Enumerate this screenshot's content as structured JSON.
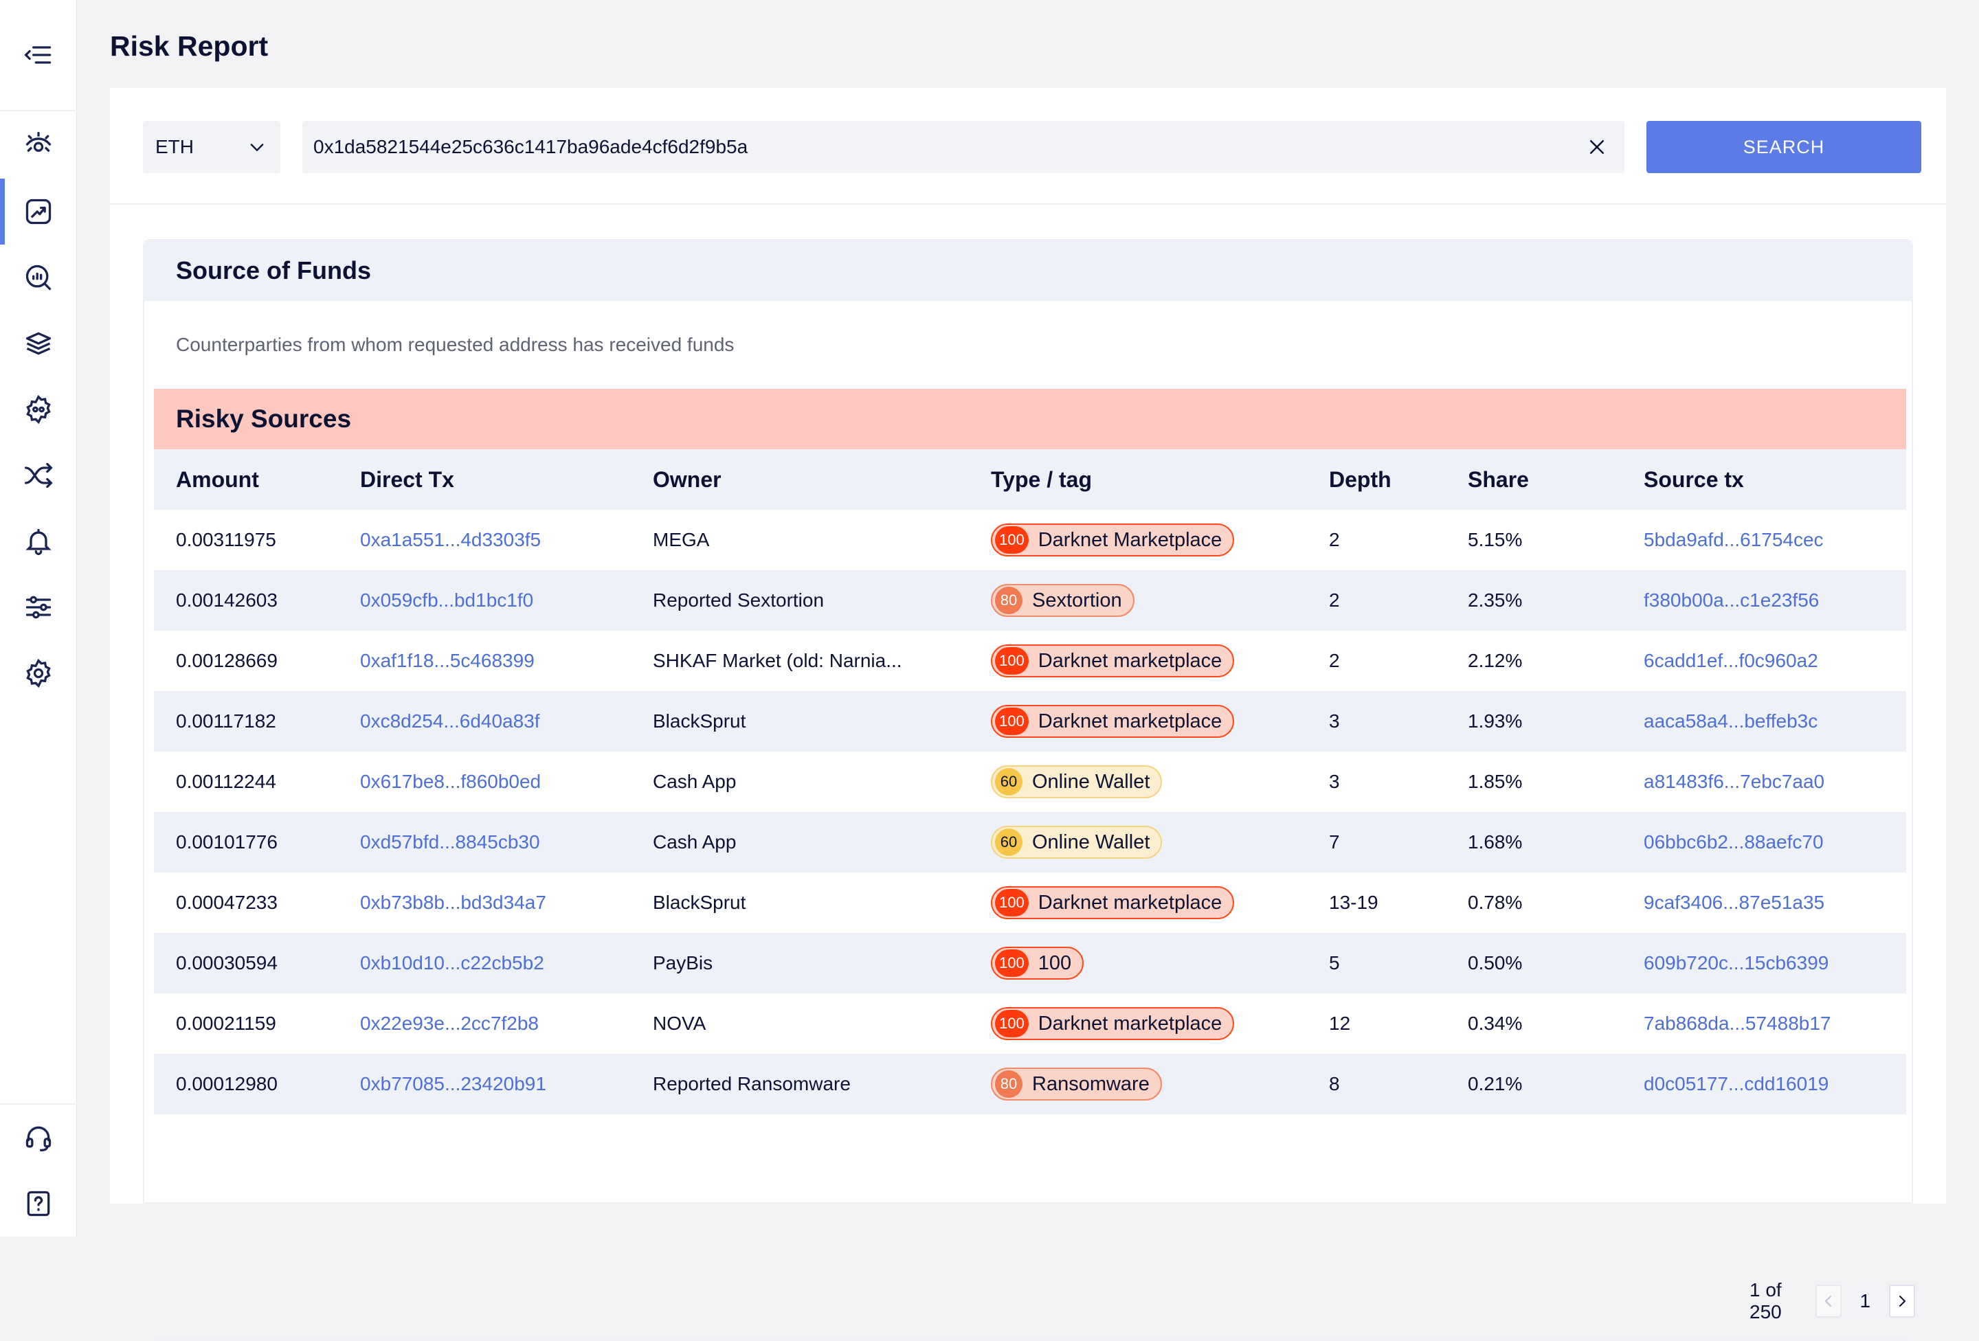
{
  "page": {
    "title": "Risk Report"
  },
  "sidebar": {
    "items": [
      {
        "icon": "menu-collapse-icon"
      },
      {
        "icon": "eye-icon"
      },
      {
        "icon": "chart-trend-icon",
        "active": true
      },
      {
        "icon": "search-analytics-icon"
      },
      {
        "icon": "layers-icon"
      },
      {
        "icon": "gear-badge-icon"
      },
      {
        "icon": "cross-arrows-icon"
      },
      {
        "icon": "bell-icon"
      },
      {
        "icon": "sliders-icon"
      },
      {
        "icon": "settings-icon"
      },
      {
        "icon": "headset-icon"
      },
      {
        "icon": "help-icon"
      }
    ]
  },
  "search": {
    "chain": "ETH",
    "address": "0x1da5821544e25c636c1417ba96ade4cf6d2f9b5a",
    "button_label": "SEARCH"
  },
  "card": {
    "title": "Source of Funds",
    "description": "Counterparties from whom requested address has received funds",
    "section_title": "Risky Sources"
  },
  "table": {
    "headers": {
      "amount": "Amount",
      "direct_tx": "Direct Tx",
      "owner": "Owner",
      "type": "Type / tag",
      "depth": "Depth",
      "share": "Share",
      "source_tx": "Source tx"
    },
    "rows": [
      {
        "amount": "0.00311975",
        "direct_tx": "0xa1a551...4d3303f5",
        "owner": "MEGA",
        "score": "100",
        "tag": "Darknet Marketplace",
        "depth": "2",
        "share": "5.15%",
        "source_tx": "5bda9afd...61754cec"
      },
      {
        "amount": "0.00142603",
        "direct_tx": "0x059cfb...bd1bc1f0",
        "owner": "Reported Sextortion",
        "score": "80",
        "tag": "Sextortion",
        "depth": "2",
        "share": "2.35%",
        "source_tx": "f380b00a...c1e23f56"
      },
      {
        "amount": "0.00128669",
        "direct_tx": "0xaf1f18...5c468399",
        "owner": "SHKAF Market (old: Narnia...",
        "score": "100",
        "tag": "Darknet marketplace",
        "depth": "2",
        "share": "2.12%",
        "source_tx": "6cadd1ef...f0c960a2"
      },
      {
        "amount": "0.00117182",
        "direct_tx": "0xc8d254...6d40a83f",
        "owner": "BlackSprut",
        "score": "100",
        "tag": "Darknet marketplace",
        "depth": "3",
        "share": "1.93%",
        "source_tx": "aaca58a4...beffeb3c"
      },
      {
        "amount": "0.00112244",
        "direct_tx": "0x617be8...f860b0ed",
        "owner": "Cash App",
        "score": "60",
        "tag": "Online Wallet",
        "depth": "3",
        "share": "1.85%",
        "source_tx": "a81483f6...7ebc7aa0"
      },
      {
        "amount": "0.00101776",
        "direct_tx": "0xd57bfd...8845cb30",
        "owner": "Cash App",
        "score": "60",
        "tag": "Online Wallet",
        "depth": "7",
        "share": "1.68%",
        "source_tx": "06bbc6b2...88aefc70"
      },
      {
        "amount": "0.00047233",
        "direct_tx": "0xb73b8b...bd3d34a7",
        "owner": "BlackSprut",
        "score": "100",
        "tag": "Darknet marketplace",
        "depth": "13-19",
        "share": "0.78%",
        "source_tx": "9caf3406...87e51a35"
      },
      {
        "amount": "0.00030594",
        "direct_tx": "0xb10d10...c22cb5b2",
        "owner": "PayBis",
        "score": "100",
        "tag": "100",
        "depth": "5",
        "share": "0.50%",
        "source_tx": "609b720c...15cb6399"
      },
      {
        "amount": "0.00021159",
        "direct_tx": "0x22e93e...2cc7f2b8",
        "owner": "NOVA",
        "score": "100",
        "tag": "Darknet marketplace",
        "depth": "12",
        "share": "0.34%",
        "source_tx": "7ab868da...57488b17"
      },
      {
        "amount": "0.00012980",
        "direct_tx": "0xb77085...23420b91",
        "owner": "Reported Ransomware",
        "score": "80",
        "tag": "Ransomware",
        "depth": "8",
        "share": "0.21%",
        "source_tx": "d0c05177...cdd16019"
      }
    ]
  },
  "pagination": {
    "info": "1 of 250",
    "current": "1"
  },
  "colors": {
    "accent": "#5b7ce6",
    "link": "#4f6fd6",
    "risk_100": "#ff3b0d",
    "risk_80": "#f07a52",
    "risk_60": "#f7c648",
    "risky_header": "#fec8c1"
  }
}
